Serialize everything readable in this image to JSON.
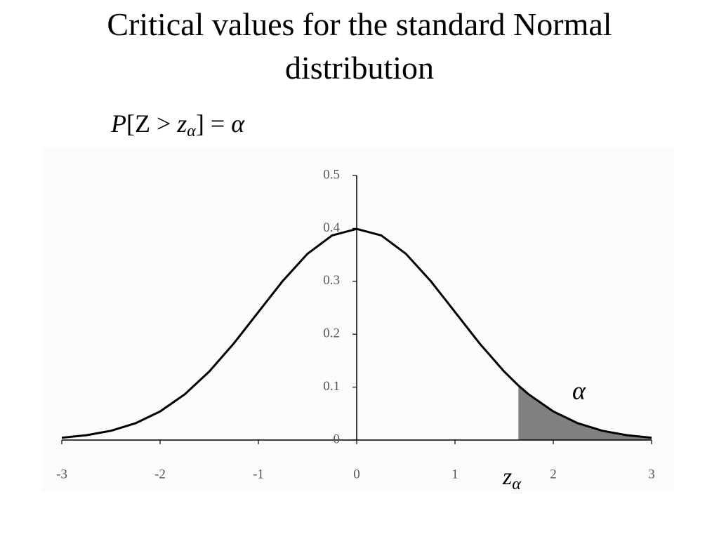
{
  "chart_data": {
    "type": "line",
    "title": "Critical values for the standard Normal distribution",
    "formula": [
      "P",
      "[Z > ",
      "z",
      "α",
      "] = ",
      "α"
    ],
    "tail_label": "α",
    "critical_label": [
      "z",
      "α"
    ],
    "x": [
      -3,
      -2.75,
      -2.5,
      -2.25,
      -2,
      -1.75,
      -1.5,
      -1.25,
      -1,
      -0.75,
      -0.5,
      -0.25,
      0,
      0.25,
      0.5,
      0.75,
      1,
      1.25,
      1.5,
      1.645,
      1.75,
      2,
      2.25,
      2.5,
      2.75,
      3
    ],
    "series": [
      {
        "color": "#000000",
        "values": [
          0.0044,
          0.0091,
          0.0175,
          0.0317,
          0.054,
          0.0863,
          0.1295,
          0.1826,
          0.242,
          0.3011,
          0.3521,
          0.3867,
          0.3989,
          0.3867,
          0.3521,
          0.3011,
          0.242,
          0.1826,
          0.1295,
          0.1031,
          0.0863,
          0.054,
          0.0317,
          0.0175,
          0.0091,
          0.0044
        ]
      }
    ],
    "shade_from": 1.645,
    "shade_color": "#808080",
    "xlim": [
      -3,
      3
    ],
    "xticks": [
      -3,
      -2,
      -1,
      0,
      1,
      2,
      3
    ],
    "ylim": [
      0,
      0.5
    ],
    "yticks": [
      0,
      0.1,
      0.2,
      0.3,
      0.4,
      0.5
    ],
    "grid": false
  }
}
